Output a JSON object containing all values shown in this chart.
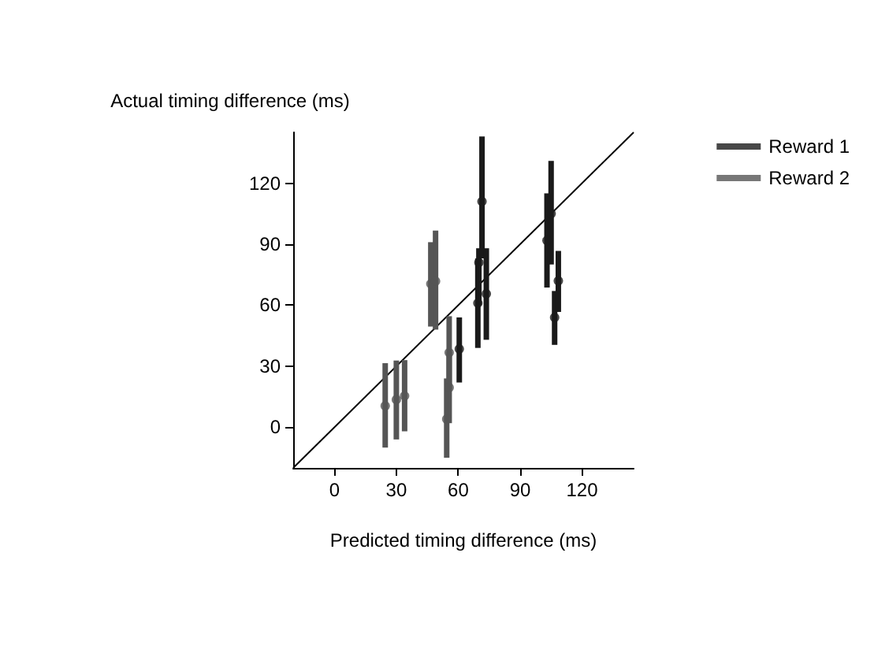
{
  "chart_data": {
    "type": "scatter",
    "xlabel": "Predicted timing difference (ms)",
    "ylabel": "Actual timing difference (ms)",
    "xlim": [
      -20,
      145
    ],
    "ylim": [
      -20,
      145
    ],
    "xticks": [
      0,
      30,
      60,
      90,
      120
    ],
    "yticks": [
      0,
      30,
      60,
      90,
      120
    ],
    "grid": false,
    "legend": "top right",
    "marker": "circle",
    "series": [
      {
        "name": "Reward 1",
        "color": "#1a1a1a",
        "x": [
          60.5,
          69.5,
          70,
          71.5,
          73.6,
          103,
          105,
          106.7,
          108.5
        ],
        "values": [
          38.5,
          61,
          81,
          111,
          65.6,
          91.8,
          105,
          54,
          72
        ],
        "errors": [
          [
            22,
            54
          ],
          [
            39,
            83
          ],
          [
            60,
            88
          ],
          [
            83,
            143
          ],
          [
            43,
            88
          ],
          [
            68.7,
            115
          ],
          [
            80,
            131
          ],
          [
            40.5,
            67
          ],
          [
            56.7,
            86.7
          ]
        ]
      },
      {
        "name": "Reward 2",
        "color": "#555555",
        "x": [
          24.6,
          30,
          34,
          46.7,
          49,
          54.4,
          55.6,
          55.6
        ],
        "values": [
          10.5,
          13.6,
          15.4,
          70.5,
          71.8,
          4,
          19.5,
          36.7
        ],
        "errors": [
          [
            -10,
            31.5
          ],
          [
            -6,
            32.8
          ],
          [
            -2,
            33
          ],
          [
            49.5,
            91
          ],
          [
            48,
            96.7
          ],
          [
            -15,
            24
          ],
          [
            2,
            37
          ],
          [
            18.7,
            54.6
          ]
        ]
      },
      {
        "type": "line",
        "color": "#000000",
        "x": [
          -20,
          145
        ],
        "values": [
          -20,
          145
        ],
        "marker": "none"
      }
    ]
  }
}
